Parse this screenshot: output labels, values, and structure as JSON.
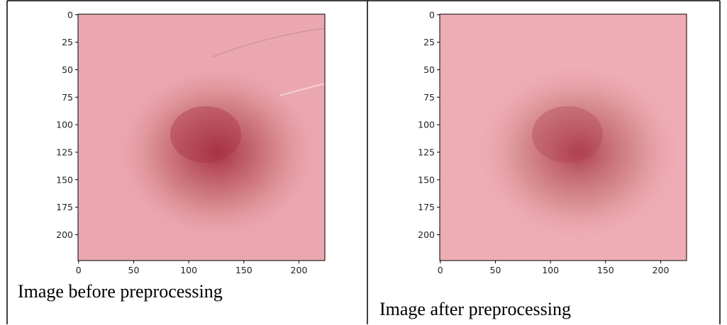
{
  "panels": [
    {
      "xlim": [
        -0.5,
        223.5
      ],
      "ylim": [
        -0.5,
        223.5
      ],
      "xticks": [
        0,
        50,
        100,
        150,
        200
      ],
      "yticks": [
        0,
        25,
        50,
        75,
        100,
        125,
        150,
        175,
        200
      ],
      "caption": "Image before preprocessing"
    },
    {
      "xlim": [
        -0.5,
        223.5
      ],
      "ylim": [
        -0.5,
        223.5
      ],
      "xticks": [
        0,
        50,
        100,
        150,
        200
      ],
      "yticks": [
        0,
        25,
        50,
        75,
        100,
        125,
        150,
        175,
        200
      ],
      "caption": "Image after preprocessing"
    }
  ]
}
